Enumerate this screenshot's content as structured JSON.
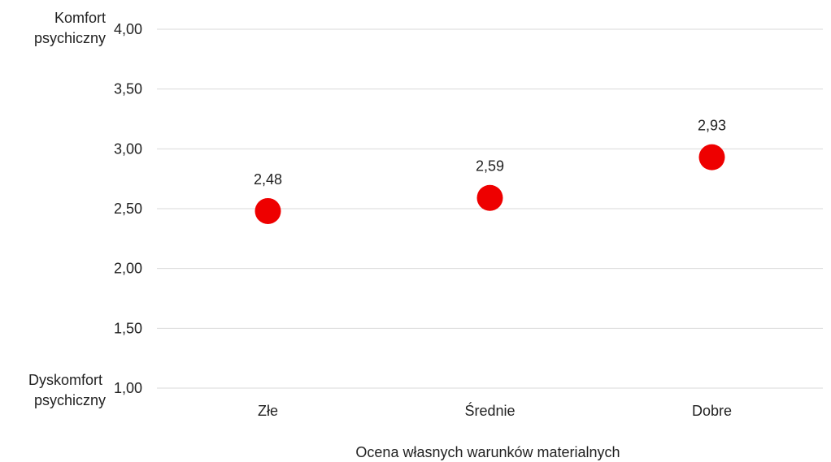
{
  "chart_data": {
    "type": "scatter",
    "categories": [
      "Złe",
      "Średnie",
      "Dobre"
    ],
    "values": [
      2.48,
      2.59,
      2.93
    ],
    "data_labels": [
      "2,48",
      "2,59",
      "2,93"
    ],
    "xlabel": "Ocena własnych warunków materialnych",
    "ylim": [
      1.0,
      4.0
    ],
    "y_ticks": [
      1.0,
      1.5,
      2.0,
      2.5,
      3.0,
      3.5,
      4.0
    ],
    "y_tick_labels": [
      "1,00",
      "1,50",
      "2,00",
      "2,50",
      "3,00",
      "3,50",
      "4,00"
    ],
    "y_top_label": [
      "Komfort",
      "psychiczny"
    ],
    "y_bottom_label": [
      "Dyskomfort",
      "psychiczny"
    ],
    "grid": true,
    "legend": "none",
    "colors": {
      "marker": "#ee0000",
      "grid": "#d9d9d9",
      "text": "#222222"
    }
  }
}
